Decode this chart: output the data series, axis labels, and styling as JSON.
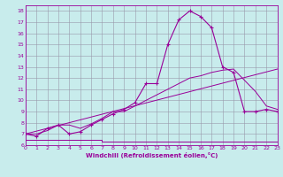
{
  "xlabel": "Windchill (Refroidissement éolien,°C)",
  "bg_color": "#c8ecec",
  "line_color": "#990099",
  "xlim": [
    0,
    23
  ],
  "ylim": [
    6,
    18.5
  ],
  "xticks": [
    0,
    1,
    2,
    3,
    4,
    5,
    6,
    7,
    8,
    9,
    10,
    11,
    12,
    13,
    14,
    15,
    16,
    17,
    18,
    19,
    20,
    21,
    22,
    23
  ],
  "yticks": [
    6,
    7,
    8,
    9,
    10,
    11,
    12,
    13,
    14,
    15,
    16,
    17,
    18
  ],
  "main_line_x": [
    0,
    1,
    2,
    3,
    4,
    5,
    6,
    7,
    8,
    9,
    10,
    11,
    12,
    13,
    14,
    15,
    16,
    17,
    18,
    19,
    20,
    21,
    22,
    23
  ],
  "main_line_y": [
    7.0,
    6.8,
    7.5,
    7.8,
    7.0,
    7.2,
    7.8,
    8.3,
    8.8,
    9.2,
    9.8,
    11.5,
    11.5,
    15.0,
    17.2,
    18.0,
    17.5,
    16.5,
    13.0,
    12.5,
    9.0,
    9.0,
    9.2,
    9.0
  ],
  "smooth_line_x": [
    0,
    23
  ],
  "smooth_line_y": [
    7.0,
    12.8
  ],
  "smooth_line2_x": [
    0,
    1,
    2,
    3,
    4,
    5,
    6,
    7,
    8,
    9,
    10,
    11,
    12,
    13,
    14,
    15,
    16,
    17,
    18,
    19,
    20,
    21,
    22,
    23
  ],
  "smooth_line2_y": [
    7.0,
    7.0,
    7.3,
    7.8,
    7.8,
    7.5,
    7.9,
    8.4,
    9.0,
    9.0,
    9.5,
    10.0,
    10.5,
    11.0,
    11.5,
    12.0,
    12.2,
    12.5,
    12.7,
    12.8,
    11.8,
    10.8,
    9.5,
    9.2
  ],
  "flat_line_x": [
    0,
    1,
    2,
    3,
    4,
    5,
    6,
    7,
    8,
    9,
    10,
    11,
    12,
    13,
    14,
    15,
    16,
    17,
    18,
    19,
    20,
    21,
    22,
    23
  ],
  "flat_line_y": [
    6.5,
    6.5,
    6.5,
    6.5,
    6.5,
    6.5,
    6.5,
    6.3,
    6.3,
    6.3,
    6.3,
    6.3,
    6.3,
    6.3,
    6.3,
    6.3,
    6.3,
    6.3,
    6.3,
    6.3,
    6.3,
    6.3,
    6.3,
    6.3
  ]
}
